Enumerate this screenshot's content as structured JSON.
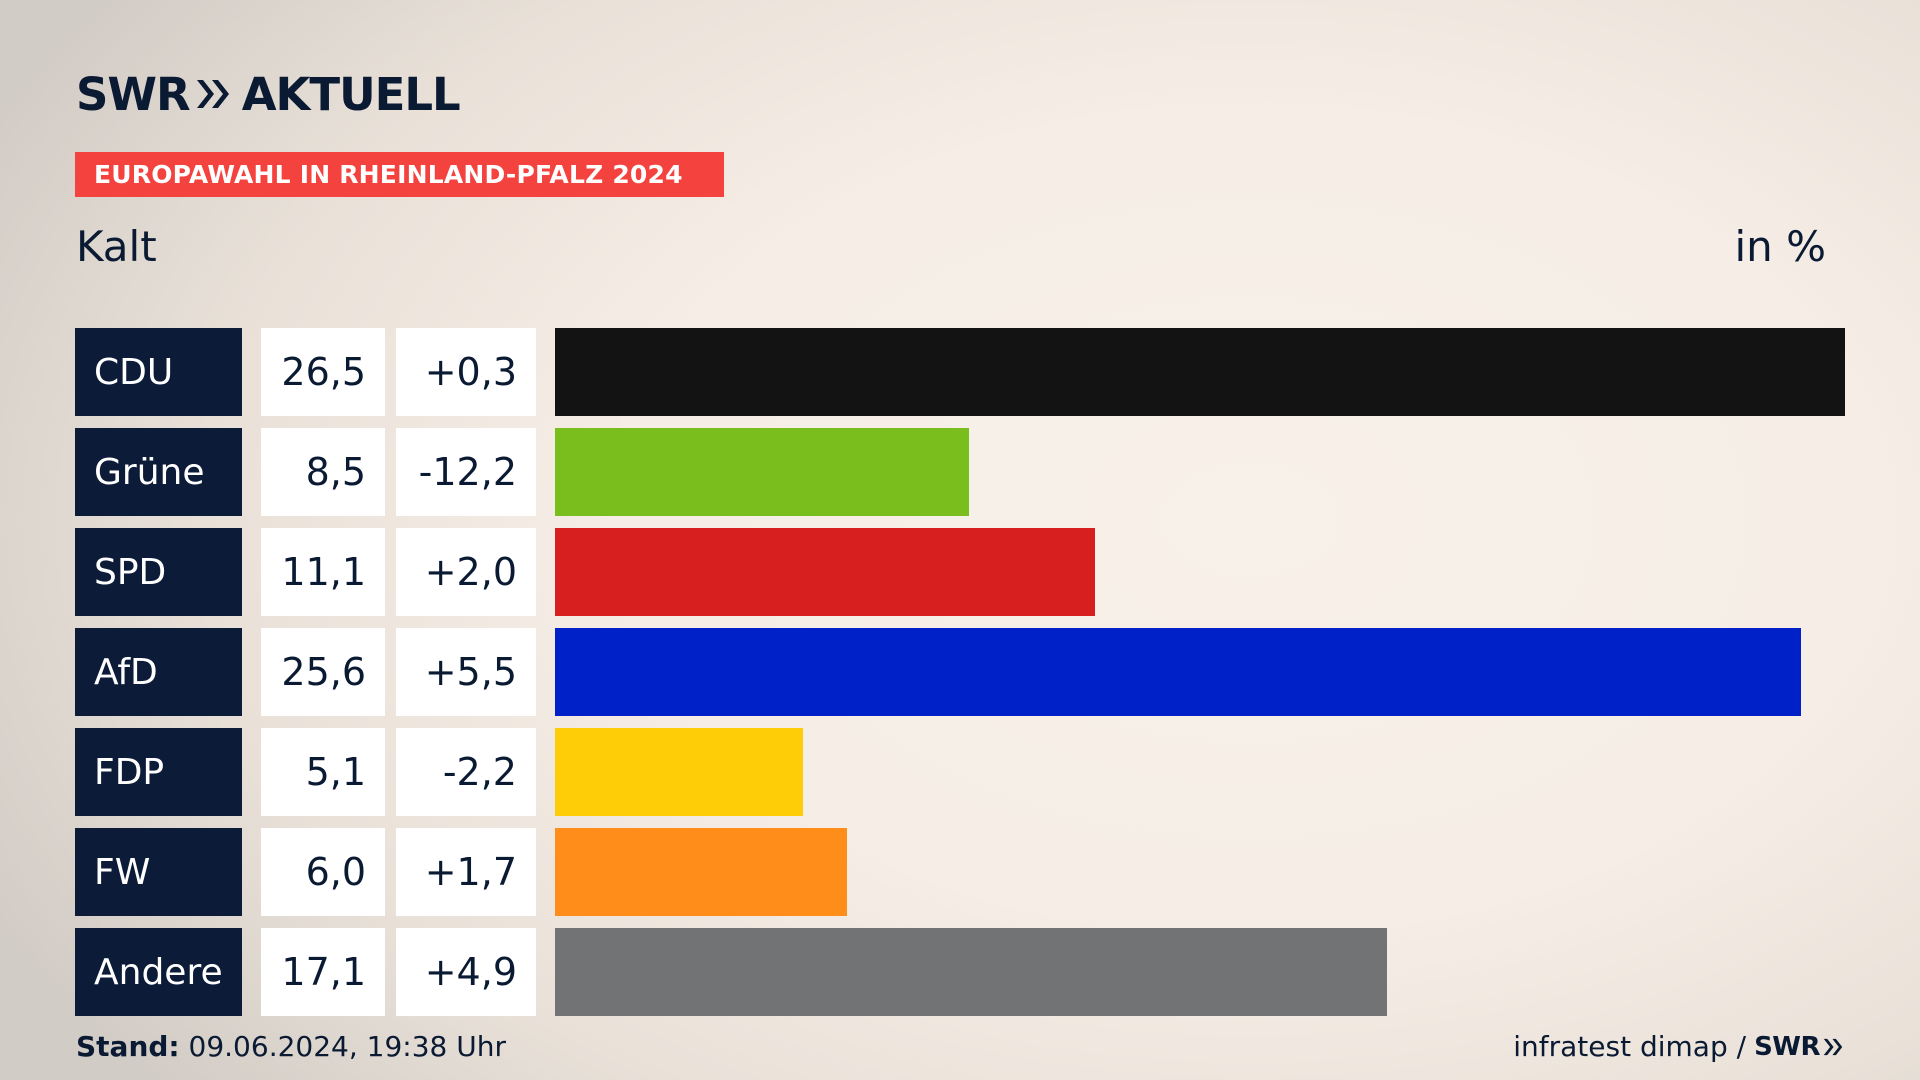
{
  "brand": {
    "logo_text": "SWR",
    "logo_suffix": "AKTUELL"
  },
  "banner": "EUROPAWAHL IN RHEINLAND-PFALZ 2024",
  "subtitle": "Kalt",
  "unit": "in %",
  "footer": {
    "stand_label": "Stand:",
    "stand_value": "09.06.2024, 19:38 Uhr",
    "source": "infratest dimap /",
    "source_brand": "SWR"
  },
  "colors": {
    "navy": "#0c1b38",
    "banner_red": "#f4433e"
  },
  "chart_data": {
    "type": "bar",
    "orientation": "horizontal",
    "title": "EUROPAWAHL IN RHEINLAND-PFALZ 2024",
    "subtitle": "Kalt",
    "unit": "in %",
    "categories": [
      "CDU",
      "Grüne",
      "SPD",
      "AfD",
      "FDP",
      "FW",
      "Andere"
    ],
    "values": [
      26.5,
      8.5,
      11.1,
      25.6,
      5.1,
      6.0,
      17.1
    ],
    "value_labels": [
      "26,5",
      "8,5",
      "11,1",
      "25,6",
      "5,1",
      "6,0",
      "17,1"
    ],
    "diff_labels": [
      "+0,3",
      "-12,2",
      "+2,0",
      "+5,5",
      "-2,2",
      "+1,7",
      "+4,9"
    ],
    "colors": [
      "#131313",
      "#7abe1e",
      "#d71f1f",
      "#0020c8",
      "#ffcc08",
      "#ff8d19",
      "#727374"
    ],
    "xlim": [
      0,
      26.5
    ]
  }
}
